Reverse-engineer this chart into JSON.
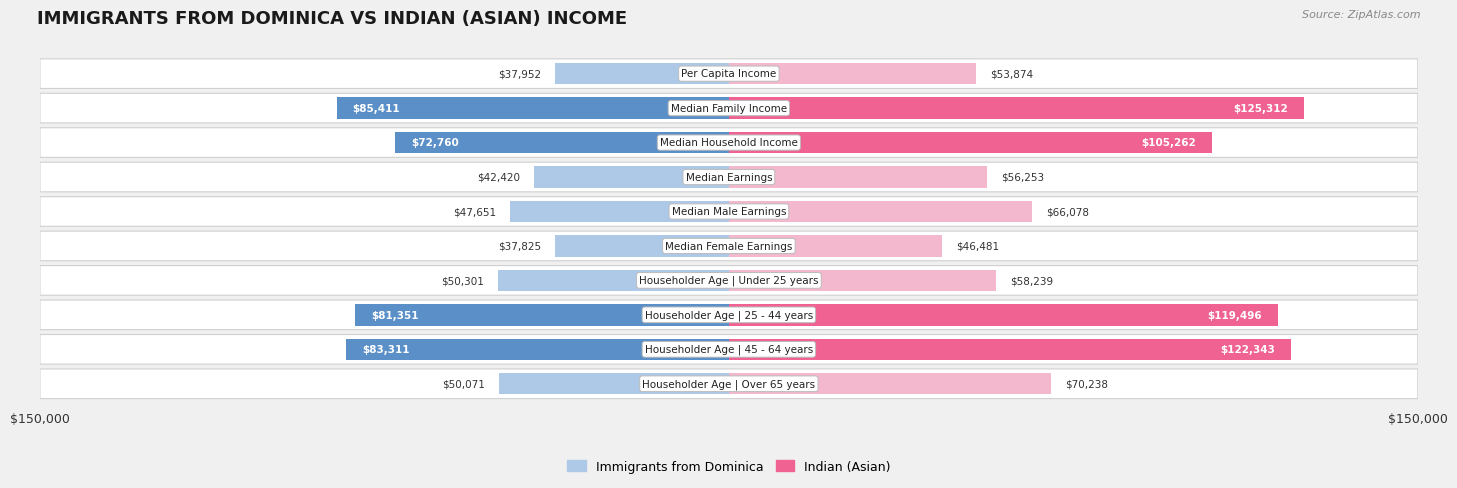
{
  "title": "IMMIGRANTS FROM DOMINICA VS INDIAN (ASIAN) INCOME",
  "source": "Source: ZipAtlas.com",
  "categories": [
    "Per Capita Income",
    "Median Family Income",
    "Median Household Income",
    "Median Earnings",
    "Median Male Earnings",
    "Median Female Earnings",
    "Householder Age | Under 25 years",
    "Householder Age | 25 - 44 years",
    "Householder Age | 45 - 64 years",
    "Householder Age | Over 65 years"
  ],
  "dominica_values": [
    37952,
    85411,
    72760,
    42420,
    47651,
    37825,
    50301,
    81351,
    83311,
    50071
  ],
  "indian_values": [
    53874,
    125312,
    105262,
    56253,
    66078,
    46481,
    58239,
    119496,
    122343,
    70238
  ],
  "dominica_labels": [
    "$37,952",
    "$85,411",
    "$72,760",
    "$42,420",
    "$47,651",
    "$37,825",
    "$50,301",
    "$81,351",
    "$83,311",
    "$50,071"
  ],
  "indian_labels": [
    "$53,874",
    "$125,312",
    "$105,262",
    "$56,253",
    "$66,078",
    "$46,481",
    "$58,239",
    "$119,496",
    "$122,343",
    "$70,238"
  ],
  "dominica_light_color": "#aec8e8",
  "dominica_dark_color": "#5b8fc7",
  "indian_light_color": "#f4b8ce",
  "indian_dark_color": "#f06292",
  "max_value": 150000,
  "bg_color": "#f0f0f0",
  "row_bg_color": "#ffffff",
  "row_border_color": "#d0d0d0",
  "title_fontsize": 13,
  "legend_label_dominica": "Immigrants from Dominica",
  "legend_label_indian": "Indian (Asian)",
  "dom_dark_threshold": 60000,
  "ind_dark_threshold": 90000
}
